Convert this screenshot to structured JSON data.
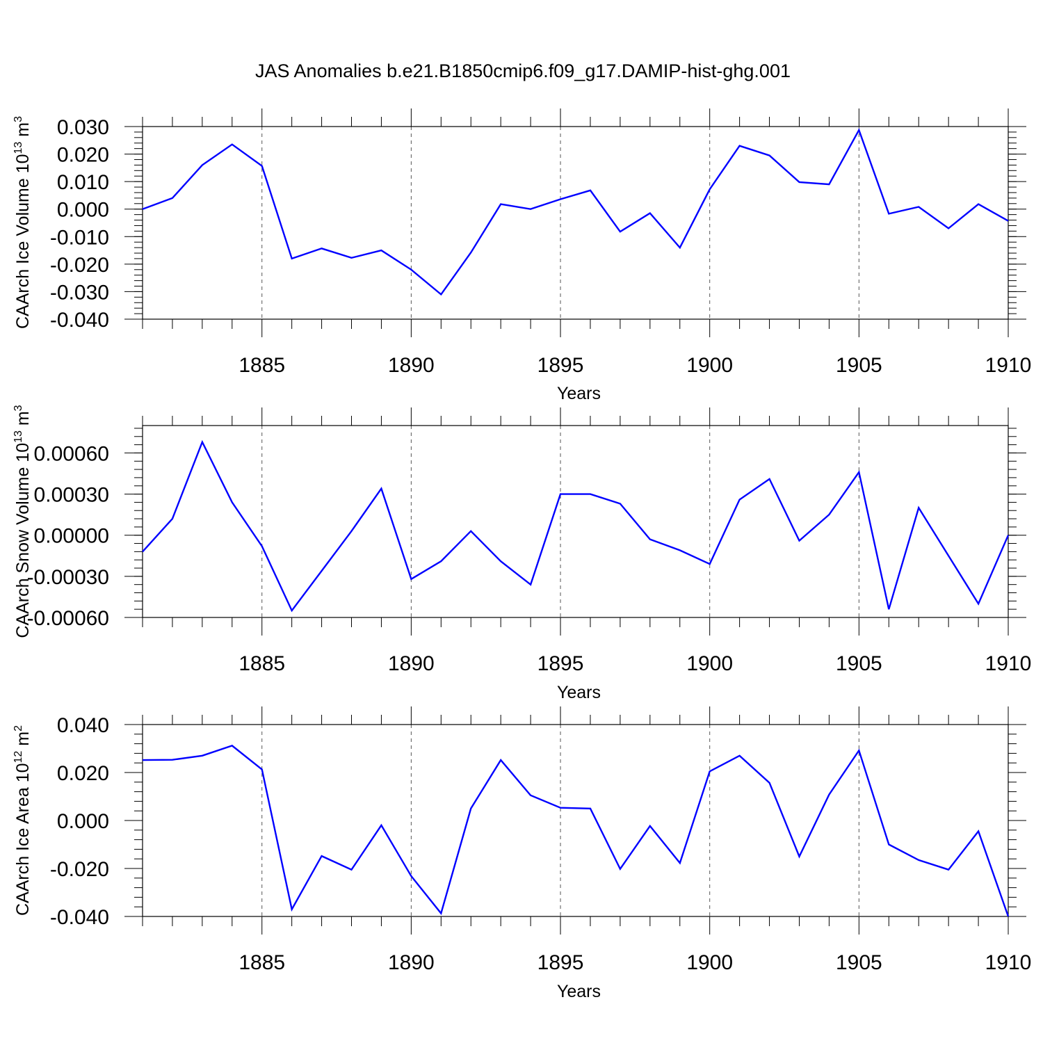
{
  "title": "JAS Anomalies b.e21.B1850cmip6.f09_g17.DAMIP-hist-ghg.001",
  "colors": {
    "line": "#0000ff",
    "axis": "#000000",
    "grid": "#555555"
  },
  "chart_data": [
    {
      "type": "line",
      "ylabel": "CAArch Ice Volume 10",
      "ylabel_exp": "13",
      "ylabel_unit": " m",
      "ylabel_unit_exp": "3",
      "xlabel": "Years",
      "xlim": [
        1881,
        1910
      ],
      "ylim": [
        -0.04,
        0.03
      ],
      "xticks": [
        1885,
        1890,
        1895,
        1900,
        1905,
        1910
      ],
      "xtick_labels": [
        "1885",
        "1890",
        "1895",
        "1900",
        "1905",
        "1910"
      ],
      "yticks": [
        -0.04,
        -0.03,
        -0.02,
        -0.01,
        0.0,
        0.01,
        0.02,
        0.03
      ],
      "ytick_labels": [
        "-0.040",
        "-0.030",
        "-0.020",
        "-0.010",
        "0.000",
        "0.010",
        "0.020",
        "0.030"
      ],
      "x": [
        1881,
        1882,
        1883,
        1884,
        1885,
        1886,
        1887,
        1888,
        1889,
        1890,
        1891,
        1892,
        1893,
        1894,
        1895,
        1896,
        1897,
        1898,
        1899,
        1900,
        1901,
        1902,
        1903,
        1904,
        1905,
        1906,
        1907,
        1908,
        1909,
        1910
      ],
      "values": [
        0.0,
        0.004,
        0.016,
        0.0235,
        0.0157,
        -0.018,
        -0.0143,
        -0.0177,
        -0.015,
        -0.022,
        -0.031,
        -0.0158,
        0.0018,
        0.0,
        0.0036,
        0.0068,
        -0.0082,
        -0.0015,
        -0.014,
        0.0072,
        0.023,
        0.0195,
        0.0098,
        0.009,
        0.0287,
        -0.0017,
        0.0008,
        -0.007,
        0.0018,
        -0.0043
      ]
    },
    {
      "type": "line",
      "ylabel": "CAArch Snow Volume 10",
      "ylabel_exp": "13",
      "ylabel_unit": " m",
      "ylabel_unit_exp": "3",
      "xlabel": "Years",
      "xlim": [
        1881,
        1910
      ],
      "ylim": [
        -0.0006,
        0.0008
      ],
      "xticks": [
        1885,
        1890,
        1895,
        1900,
        1905,
        1910
      ],
      "xtick_labels": [
        "1885",
        "1890",
        "1895",
        "1900",
        "1905",
        "1910"
      ],
      "yticks": [
        -0.0006,
        -0.0003,
        0.0,
        0.0003,
        0.0006
      ],
      "ytick_labels": [
        "-0.00060",
        "-0.00030",
        "0.00000",
        "0.00030",
        "0.00060"
      ],
      "x": [
        1881,
        1882,
        1883,
        1884,
        1885,
        1886,
        1887,
        1888,
        1889,
        1890,
        1891,
        1892,
        1893,
        1894,
        1895,
        1896,
        1897,
        1898,
        1899,
        1900,
        1901,
        1902,
        1903,
        1904,
        1905,
        1906,
        1907,
        1908,
        1909,
        1910
      ],
      "values": [
        -0.00012,
        0.00012,
        0.00068,
        0.00024,
        -8e-05,
        -0.00055,
        -0.00026,
        3e-05,
        0.00034,
        -0.00032,
        -0.00019,
        3e-05,
        -0.00019,
        -0.00036,
        0.0003,
        0.0003,
        0.00023,
        -3e-05,
        -0.00011,
        -0.00021,
        0.00026,
        0.00041,
        -4e-05,
        0.00015,
        0.00046,
        -0.00054,
        0.0002,
        -0.00015,
        -0.0005,
        0.0
      ]
    },
    {
      "type": "line",
      "ylabel": "CAArch Ice Area 10",
      "ylabel_exp": "12",
      "ylabel_unit": " m",
      "ylabel_unit_exp": "2",
      "xlabel": "Years",
      "xlim": [
        1881,
        1910
      ],
      "ylim": [
        -0.04,
        0.04
      ],
      "xticks": [
        1885,
        1890,
        1895,
        1900,
        1905,
        1910
      ],
      "xtick_labels": [
        "1885",
        "1890",
        "1895",
        "1900",
        "1905",
        "1910"
      ],
      "yticks": [
        -0.04,
        -0.02,
        0.0,
        0.02,
        0.04
      ],
      "ytick_labels": [
        "-0.040",
        "-0.020",
        "0.000",
        "0.020",
        "0.040"
      ],
      "x": [
        1881,
        1882,
        1883,
        1884,
        1885,
        1886,
        1887,
        1888,
        1889,
        1890,
        1891,
        1892,
        1893,
        1894,
        1895,
        1896,
        1897,
        1898,
        1899,
        1900,
        1901,
        1902,
        1903,
        1904,
        1905,
        1906,
        1907,
        1908,
        1909,
        1910
      ],
      "values": [
        0.0252,
        0.0253,
        0.027,
        0.0312,
        0.0213,
        -0.037,
        -0.0148,
        -0.0205,
        -0.002,
        -0.0232,
        -0.0387,
        0.005,
        0.0252,
        0.0105,
        0.0053,
        0.005,
        -0.0202,
        -0.0023,
        -0.0177,
        0.0205,
        0.027,
        0.0157,
        -0.015,
        0.0108,
        0.0292,
        -0.01,
        -0.0165,
        -0.0205,
        -0.0045,
        -0.04
      ]
    }
  ]
}
